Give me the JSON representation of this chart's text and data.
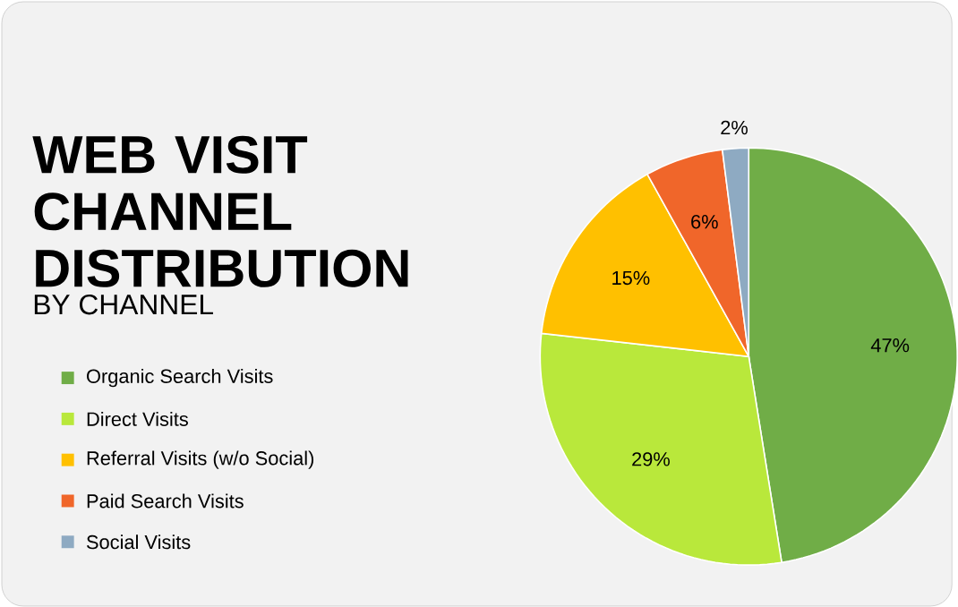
{
  "chart_data": {
    "type": "pie",
    "title": "WEB VISIT CHANNEL DISTRIBUTION",
    "subtitle": "BY CHANNEL",
    "categories": [
      "Organic Search Visits",
      "Direct Visits",
      "Referral Visits (w/o Social)",
      "Paid Search Visits",
      "Social Visits"
    ],
    "values": [
      47,
      29,
      15,
      6,
      2
    ],
    "value_labels": [
      "47%",
      "29%",
      "15%",
      "6%",
      "2%"
    ],
    "colors": [
      "#70ad47",
      "#b9e83b",
      "#ffc000",
      "#f0662a",
      "#8eaac2"
    ],
    "legend": "left"
  }
}
